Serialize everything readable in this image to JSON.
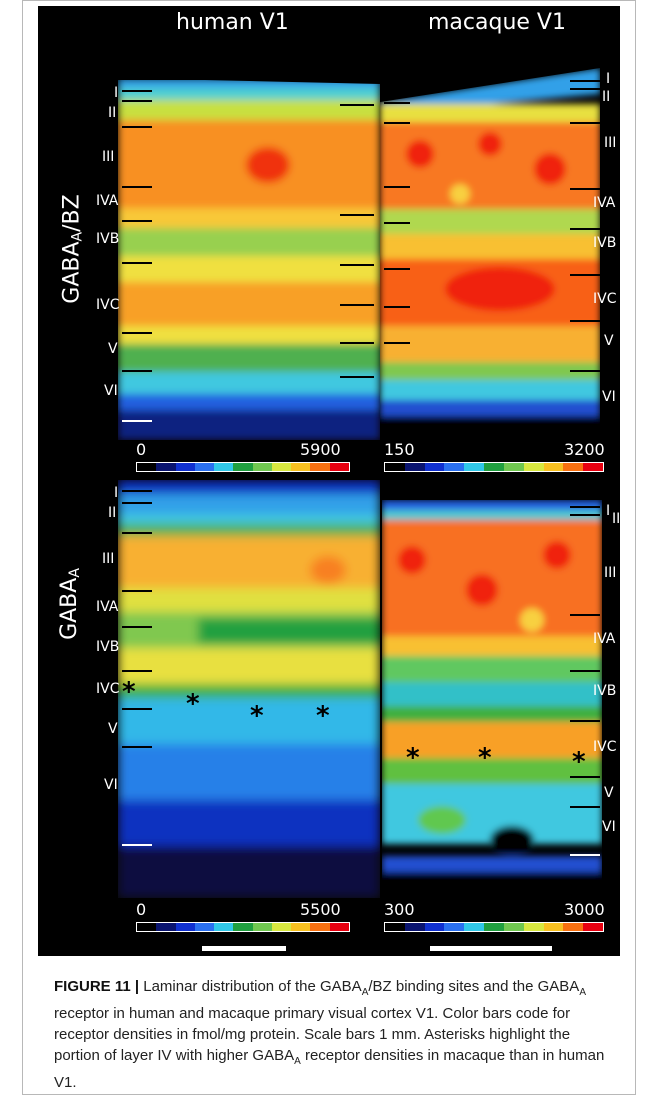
{
  "figure": {
    "col_titles": [
      "human V1",
      "macaque V1"
    ],
    "row_labels": {
      "top": {
        "main": "GABA",
        "sub": "A",
        "suffix": "/BZ"
      },
      "bottom": {
        "main": "GABA",
        "sub": "A",
        "suffix": ""
      }
    },
    "layers": {
      "tl": [
        "I",
        "II",
        "III",
        "IVA",
        "IVB",
        "IVC",
        "V",
        "VI"
      ],
      "tr": [
        "I",
        "II",
        "III",
        "IVA",
        "IVB",
        "IVC",
        "V",
        "VI"
      ],
      "bl": [
        "I",
        "II",
        "III",
        "IVA",
        "IVB",
        "IVC",
        "V",
        "VI"
      ],
      "br": [
        "I",
        "II",
        "III",
        "IVA",
        "IVB",
        "IVC",
        "V",
        "VI"
      ]
    },
    "scales": {
      "tl": {
        "min": "0",
        "max": "5900"
      },
      "tr": {
        "min": "150",
        "max": "3200"
      },
      "bl": {
        "min": "0",
        "max": "5500"
      },
      "br": {
        "min": "300",
        "max": "3000"
      }
    },
    "asterisk": "*",
    "colorbar": [
      "#000000",
      "#0a1470",
      "#1030d0",
      "#2a70f0",
      "#30c8e8",
      "#20a040",
      "#70c850",
      "#d8e840",
      "#f8c020",
      "#f87010",
      "#e80010"
    ]
  },
  "caption": {
    "label": "FIGURE 11 |",
    "p1": " Laminar distribution of the GABA",
    "s1": "A",
    "p2": "/BZ binding sites and the GABA",
    "s2": "A",
    "p3": " receptor in human and macaque primary visual cortex V1. Color bars code for receptor densities in fmol/mg protein. Scale bars 1 mm. Asterisks highlight the portion of layer IV with higher GABA",
    "s3": "A",
    "p4": " receptor densities in macaque than in human V1."
  }
}
